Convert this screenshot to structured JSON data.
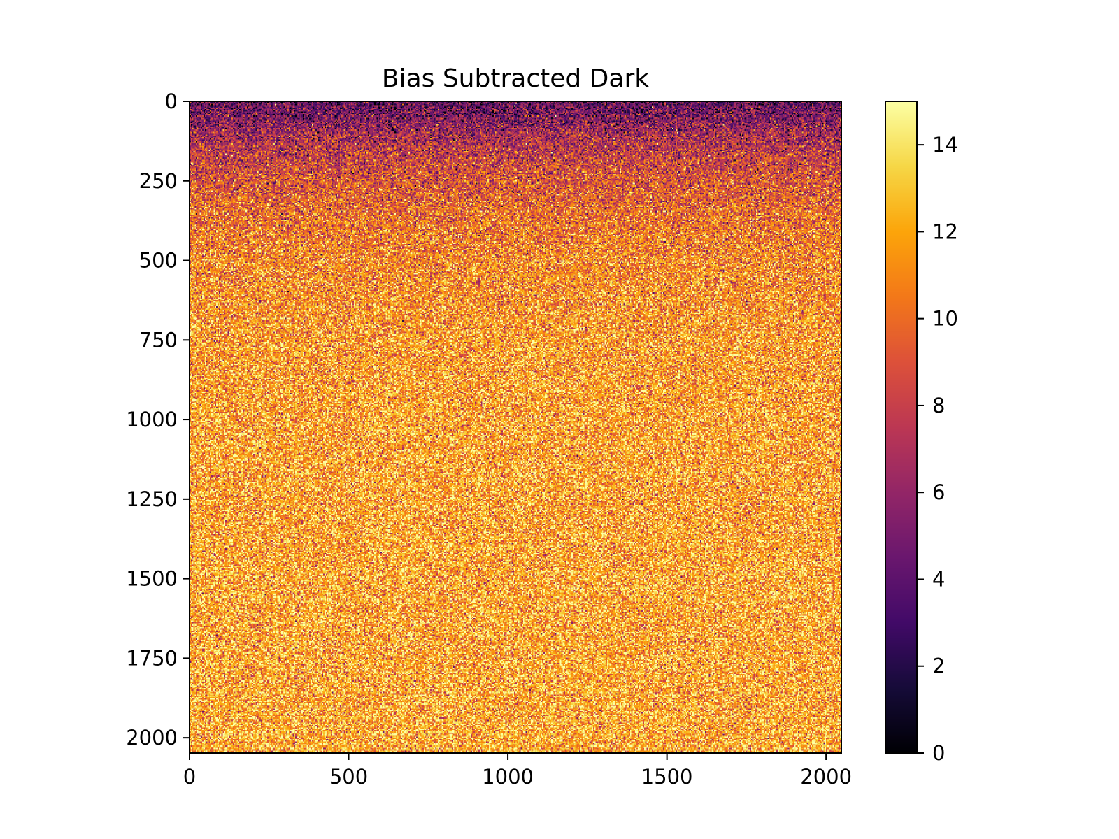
{
  "chart_data": {
    "type": "heatmap",
    "title": "Bias Subtracted Dark",
    "xlabel": "",
    "ylabel": "",
    "xlim": [
      0,
      2048
    ],
    "ylim": [
      2048,
      0
    ],
    "x_ticks": [
      0,
      500,
      1000,
      1500,
      2000
    ],
    "x_tick_labels": [
      "0",
      "500",
      "1000",
      "1500",
      "2000"
    ],
    "y_ticks": [
      0,
      250,
      500,
      750,
      1000,
      1250,
      1500,
      1750,
      2000
    ],
    "y_tick_labels": [
      "0",
      "250",
      "500",
      "750",
      "1000",
      "1250",
      "1500",
      "1750",
      "2000"
    ],
    "colormap": "inferno",
    "value_range": [
      0,
      15
    ],
    "colorbar": {
      "ticks": [
        0,
        2,
        4,
        6,
        8,
        10,
        12,
        14
      ],
      "tick_labels": [
        "0",
        "2",
        "4",
        "6",
        "8",
        "10",
        "12",
        "14"
      ]
    },
    "row_mean_profile": {
      "rows": [
        0,
        50,
        100,
        150,
        250,
        350,
        500,
        750,
        1000,
        1250,
        1500,
        1750,
        2000,
        2048
      ],
      "mean_values": [
        4,
        5,
        6.5,
        7.5,
        9,
        10,
        11,
        11.7,
        12,
        12,
        12.1,
        12.1,
        12.2,
        12.2
      ]
    },
    "noise_std": 2.5,
    "grid": false
  }
}
